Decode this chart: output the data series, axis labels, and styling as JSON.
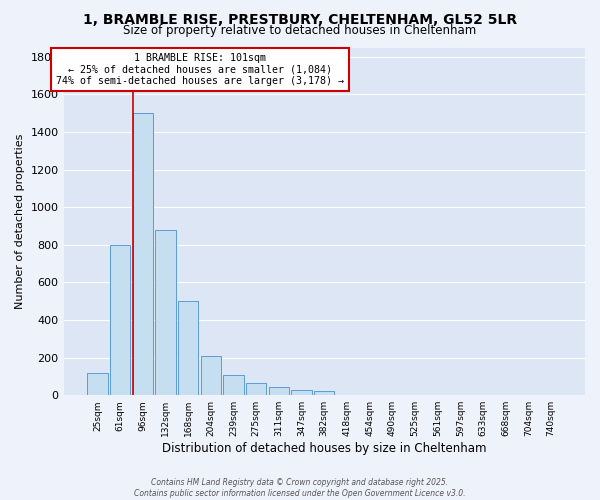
{
  "title": "1, BRAMBLE RISE, PRESTBURY, CHELTENHAM, GL52 5LR",
  "subtitle": "Size of property relative to detached houses in Cheltenham",
  "xlabel": "Distribution of detached houses by size in Cheltenham",
  "ylabel": "Number of detached properties",
  "categories": [
    "25sqm",
    "61sqm",
    "96sqm",
    "132sqm",
    "168sqm",
    "204sqm",
    "239sqm",
    "275sqm",
    "311sqm",
    "347sqm",
    "382sqm",
    "418sqm",
    "454sqm",
    "490sqm",
    "525sqm",
    "561sqm",
    "597sqm",
    "633sqm",
    "668sqm",
    "704sqm",
    "740sqm"
  ],
  "values": [
    120,
    800,
    1500,
    880,
    500,
    210,
    110,
    65,
    45,
    30,
    20,
    0,
    0,
    0,
    0,
    0,
    0,
    0,
    0,
    0,
    0
  ],
  "bar_color": "#c5dff0",
  "bar_edge_color": "#5b9bd5",
  "annotation_text_line1": "1 BRAMBLE RISE: 101sqm",
  "annotation_text_line2": "← 25% of detached houses are smaller (1,084)",
  "annotation_text_line3": "74% of semi-detached houses are larger (3,178) →",
  "red_line_color": "#cc0000",
  "box_edge_color": "#cc0000",
  "ylim": [
    0,
    1850
  ],
  "background_color": "#eef2fa",
  "plot_bg_color": "#dde6f5",
  "grid_color": "#ffffff",
  "footer_line1": "Contains HM Land Registry data © Crown copyright and database right 2025.",
  "footer_line2": "Contains public sector information licensed under the Open Government Licence v3.0."
}
